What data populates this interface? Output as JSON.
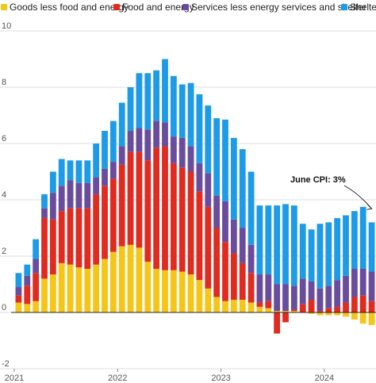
{
  "chart_data": {
    "type": "bar",
    "stacked": true,
    "title": "",
    "xlabel": "",
    "ylabel": "",
    "ylim": [
      -2,
      10
    ],
    "y_ticks": [
      -2,
      0,
      2,
      4,
      6,
      8,
      10
    ],
    "x_tick_labels": [
      {
        "label": "2021",
        "index": 0
      },
      {
        "label": "2022",
        "index": 12
      },
      {
        "label": "2023",
        "index": 24
      },
      {
        "label": "2024",
        "index": 36
      }
    ],
    "grid": true,
    "legend_position": "top",
    "categories": [
      "Jan 2021",
      "Feb 2021",
      "Mar 2021",
      "Apr 2021",
      "May 2021",
      "Jun 2021",
      "Jul 2021",
      "Aug 2021",
      "Sep 2021",
      "Oct 2021",
      "Nov 2021",
      "Dec 2021",
      "Jan 2022",
      "Feb 2022",
      "Mar 2022",
      "Apr 2022",
      "May 2022",
      "Jun 2022",
      "Jul 2022",
      "Aug 2022",
      "Sep 2022",
      "Oct 2022",
      "Nov 2022",
      "Dec 2022",
      "Jan 2023",
      "Feb 2023",
      "Mar 2023",
      "Apr 2023",
      "May 2023",
      "Jun 2023",
      "Jul 2023",
      "Aug 2023",
      "Sep 2023",
      "Oct 2023",
      "Nov 2023",
      "Dec 2023",
      "Jan 2024",
      "Feb 2024",
      "Mar 2024",
      "Apr 2024",
      "May 2024",
      "Jun 2024"
    ],
    "series": [
      {
        "name": "Goods less food and energy",
        "color": "#f5c518",
        "values": [
          0.35,
          0.3,
          0.4,
          1.2,
          1.35,
          1.75,
          1.7,
          1.6,
          1.55,
          1.7,
          1.9,
          2.15,
          2.35,
          2.4,
          2.3,
          1.8,
          1.55,
          1.5,
          1.5,
          1.45,
          1.35,
          1.15,
          0.85,
          0.55,
          0.4,
          0.45,
          0.45,
          0.35,
          0.2,
          0.15,
          0.05,
          0.05,
          0.05,
          0.0,
          -0.05,
          -0.1,
          -0.1,
          -0.1,
          -0.15,
          -0.25,
          -0.4,
          -0.45
        ]
      },
      {
        "name": "Food and energy",
        "color": "#e02b20",
        "values": [
          0.25,
          0.65,
          1.0,
          2.15,
          1.95,
          1.85,
          2.0,
          2.1,
          2.15,
          2.5,
          2.6,
          2.6,
          2.9,
          3.3,
          3.4,
          3.6,
          4.3,
          4.4,
          3.8,
          3.7,
          3.65,
          3.15,
          2.9,
          2.45,
          2.1,
          1.65,
          1.3,
          1.05,
          0.15,
          0.25,
          -0.75,
          -0.35,
          0.05,
          0.3,
          0.45,
          0.05,
          0.15,
          0.2,
          0.35,
          0.55,
          0.6,
          0.4
        ]
      },
      {
        "name": "Services less energy services and shelter",
        "color": "#6a4c9c",
        "values": [
          0.3,
          0.35,
          0.5,
          0.35,
          0.95,
          0.9,
          1.0,
          0.9,
          0.9,
          0.6,
          0.6,
          0.6,
          0.65,
          0.75,
          0.85,
          1.1,
          0.95,
          0.85,
          0.95,
          1.05,
          0.9,
          1.0,
          1.2,
          1.15,
          1.45,
          1.2,
          1.25,
          1.0,
          1.0,
          0.95,
          0.95,
          0.95,
          0.85,
          0.9,
          0.65,
          0.8,
          0.8,
          0.95,
          0.95,
          1.0,
          0.95,
          1.05
        ]
      },
      {
        "name": "Shelter",
        "color": "#1e9be6",
        "values": [
          0.5,
          0.4,
          0.7,
          0.5,
          0.75,
          0.95,
          0.7,
          0.8,
          0.8,
          1.2,
          1.35,
          1.45,
          1.55,
          1.55,
          1.95,
          2.0,
          1.8,
          2.25,
          2.15,
          1.9,
          2.25,
          2.45,
          2.4,
          2.75,
          2.9,
          2.9,
          2.8,
          2.6,
          2.45,
          2.45,
          2.8,
          2.85,
          2.85,
          1.95,
          1.85,
          2.3,
          2.25,
          2.2,
          2.15,
          2.05,
          2.2,
          1.75
        ]
      }
    ],
    "annotations": [
      {
        "text": "June CPI: 3%",
        "target_index": 41,
        "target_value": 3.6
      }
    ]
  }
}
